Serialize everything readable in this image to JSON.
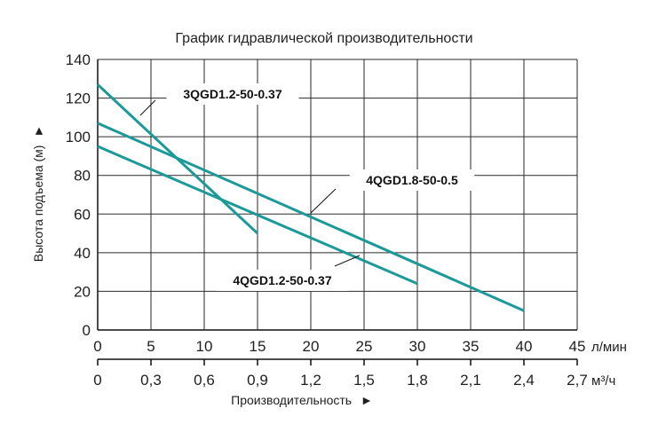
{
  "chart_data": {
    "type": "line",
    "title": "График гидравлической производительности",
    "ylabel": "Высота подъема (м)",
    "xlabel": "Производительность",
    "y_arrow": "►",
    "x_arrow": "►",
    "x_unit": "л/мин",
    "x2_unit": "м³/ч",
    "xlim": [
      0,
      45
    ],
    "ylim": [
      0,
      140
    ],
    "x_ticks": [
      "0",
      "5",
      "10",
      "15",
      "20",
      "25",
      "30",
      "35",
      "40",
      "45"
    ],
    "x2_ticks": [
      "0",
      "0,3",
      "0,6",
      "0,9",
      "1,2",
      "1,5",
      "1,8",
      "2,1",
      "2,4",
      "2,7"
    ],
    "y_ticks": [
      "0",
      "20",
      "40",
      "60",
      "80",
      "100",
      "120",
      "140"
    ],
    "grid": true,
    "line_color": "#1a9a98",
    "series": [
      {
        "name": "3QGD1.2-50-0.37",
        "x": [
          0,
          15
        ],
        "y": [
          127,
          50
        ]
      },
      {
        "name": "4QGD1.8-50-0.5",
        "x": [
          0,
          40
        ],
        "y": [
          107,
          10
        ]
      },
      {
        "name": "4QGD1.2-50-0.37",
        "x": [
          0,
          30
        ],
        "y": [
          95,
          24
        ]
      }
    ]
  }
}
